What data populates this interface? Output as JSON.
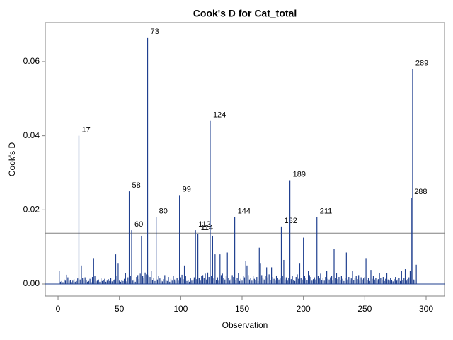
{
  "chart_data": {
    "type": "needle",
    "title": "Cook's D for Cat_total",
    "xlabel": "Observation",
    "ylabel": "Cook's D",
    "color": "#1f3f8f",
    "baseline_color": "#1f3f8f",
    "reference_line": 0.0137,
    "reference_color": "#808080",
    "xlim": [
      -10.4,
      315
    ],
    "xticks": [
      0,
      50,
      100,
      150,
      200,
      250,
      300
    ],
    "ylim": [
      -0.00325,
      0.0705
    ],
    "yticks": [
      {
        "value": 0,
        "label": "0.00"
      },
      {
        "value": 0.02,
        "label": "0.02"
      },
      {
        "value": 0.04,
        "label": "0.04"
      },
      {
        "value": 0.06,
        "label": "0.06"
      }
    ],
    "x": [
      1,
      2,
      3,
      4,
      5,
      6,
      7,
      8,
      9,
      10,
      11,
      12,
      13,
      14,
      15,
      16,
      17,
      18,
      19,
      20,
      21,
      22,
      23,
      24,
      25,
      26,
      27,
      28,
      29,
      30,
      31,
      32,
      33,
      34,
      35,
      36,
      37,
      38,
      39,
      40,
      41,
      42,
      43,
      44,
      45,
      46,
      47,
      48,
      49,
      50,
      51,
      52,
      53,
      54,
      55,
      56,
      57,
      58,
      59,
      60,
      61,
      62,
      63,
      64,
      65,
      66,
      67,
      68,
      69,
      70,
      71,
      72,
      73,
      74,
      75,
      76,
      77,
      78,
      79,
      80,
      81,
      82,
      83,
      84,
      85,
      86,
      87,
      88,
      89,
      90,
      91,
      92,
      93,
      94,
      95,
      96,
      97,
      98,
      99,
      100,
      101,
      102,
      103,
      104,
      105,
      106,
      107,
      108,
      109,
      110,
      111,
      112,
      113,
      114,
      115,
      116,
      117,
      118,
      119,
      120,
      121,
      122,
      123,
      124,
      125,
      126,
      127,
      128,
      129,
      130,
      131,
      132,
      133,
      134,
      135,
      136,
      137,
      138,
      139,
      140,
      141,
      142,
      143,
      144,
      145,
      146,
      147,
      148,
      149,
      150,
      151,
      152,
      153,
      154,
      155,
      156,
      157,
      158,
      159,
      160,
      161,
      162,
      163,
      164,
      165,
      166,
      167,
      168,
      169,
      170,
      171,
      172,
      173,
      174,
      175,
      176,
      177,
      178,
      179,
      180,
      181,
      182,
      183,
      184,
      185,
      186,
      187,
      188,
      189,
      190,
      191,
      192,
      193,
      194,
      195,
      196,
      197,
      198,
      199,
      200,
      201,
      202,
      203,
      204,
      205,
      206,
      207,
      208,
      209,
      210,
      211,
      212,
      213,
      214,
      215,
      216,
      217,
      218,
      219,
      220,
      221,
      222,
      223,
      224,
      225,
      226,
      227,
      228,
      229,
      230,
      231,
      232,
      233,
      234,
      235,
      236,
      237,
      238,
      239,
      240,
      241,
      242,
      243,
      244,
      245,
      246,
      247,
      248,
      249,
      250,
      251,
      252,
      253,
      254,
      255,
      256,
      257,
      258,
      259,
      260,
      261,
      262,
      263,
      264,
      265,
      266,
      267,
      268,
      269,
      270,
      271,
      272,
      273,
      274,
      275,
      276,
      277,
      278,
      279,
      280,
      281,
      282,
      283,
      284,
      285,
      286,
      287,
      288,
      289,
      290,
      291,
      292
    ],
    "values": [
      0.0035,
      0.0006,
      0.0008,
      0.0005,
      0.0012,
      0.0009,
      0.0025,
      0.0018,
      0.0007,
      0.0011,
      0.0005,
      0.0009,
      0.0013,
      0.0006,
      0.0008,
      0.0015,
      0.04,
      0.0012,
      0.005,
      0.0016,
      0.0009,
      0.0018,
      0.0011,
      0.0006,
      0.0008,
      0.0014,
      0.0005,
      0.0019,
      0.007,
      0.0021,
      0.0007,
      0.0009,
      0.0012,
      0.0006,
      0.0015,
      0.0008,
      0.0011,
      0.0014,
      0.0006,
      0.0009,
      0.0013,
      0.0008,
      0.0016,
      0.0007,
      0.001,
      0.0012,
      0.008,
      0.0022,
      0.0055,
      0.0009,
      0.0006,
      0.0011,
      0.0008,
      0.0014,
      0.003,
      0.0007,
      0.0018,
      0.025,
      0.0021,
      0.0145,
      0.0009,
      0.0012,
      0.0006,
      0.0019,
      0.0024,
      0.0013,
      0.0028,
      0.013,
      0.0022,
      0.0017,
      0.0031,
      0.0026,
      0.0665,
      0.0024,
      0.0019,
      0.0035,
      0.0011,
      0.0016,
      0.0008,
      0.018,
      0.0012,
      0.0021,
      0.0015,
      0.0009,
      0.0007,
      0.0013,
      0.0024,
      0.0011,
      0.0008,
      0.0019,
      0.0006,
      0.0014,
      0.0009,
      0.0022,
      0.0012,
      0.0007,
      0.0016,
      0.0009,
      0.024,
      0.0018,
      0.0025,
      0.0013,
      0.005,
      0.0021,
      0.0008,
      0.0011,
      0.0006,
      0.0015,
      0.0009,
      0.0012,
      0.0018,
      0.0145,
      0.0013,
      0.0135,
      0.0016,
      0.0009,
      0.0021,
      0.0024,
      0.0017,
      0.0028,
      0.0012,
      0.0031,
      0.0019,
      0.044,
      0.0022,
      0.013,
      0.0015,
      0.008,
      0.0011,
      0.0018,
      0.0009,
      0.008,
      0.0024,
      0.0028,
      0.0016,
      0.0012,
      0.0021,
      0.0085,
      0.0017,
      0.0009,
      0.0013,
      0.0024,
      0.0019,
      0.018,
      0.0011,
      0.0016,
      0.003,
      0.0008,
      0.0014,
      0.0009,
      0.0021,
      0.0018,
      0.0062,
      0.005,
      0.0024,
      0.0012,
      0.0016,
      0.0009,
      0.0022,
      0.0014,
      0.0011,
      0.0019,
      0.0008,
      0.0098,
      0.0055,
      0.0024,
      0.0016,
      0.0012,
      0.0021,
      0.0045,
      0.0018,
      0.0026,
      0.0011,
      0.0045,
      0.0019,
      0.0014,
      0.0009,
      0.0023,
      0.0017,
      0.0012,
      0.0015,
      0.0155,
      0.0021,
      0.0065,
      0.0012,
      0.0018,
      0.0009,
      0.0016,
      0.028,
      0.0013,
      0.0022,
      0.0011,
      0.0008,
      0.0019,
      0.0026,
      0.0014,
      0.0055,
      0.0017,
      0.0012,
      0.0125,
      0.0021,
      0.0016,
      0.0011,
      0.0035,
      0.0024,
      0.0019,
      0.0009,
      0.0013,
      0.0018,
      0.0012,
      0.018,
      0.0021,
      0.0015,
      0.0028,
      0.0011,
      0.0016,
      0.0009,
      0.0019,
      0.0035,
      0.0014,
      0.0012,
      0.0018,
      0.0021,
      0.0009,
      0.0095,
      0.0016,
      0.003,
      0.0013,
      0.0019,
      0.0011,
      0.0022,
      0.0014,
      0.0008,
      0.0017,
      0.0085,
      0.0012,
      0.0019,
      0.0009,
      0.0015,
      0.0035,
      0.0011,
      0.0016,
      0.0021,
      0.0013,
      0.0024,
      0.0009,
      0.0018,
      0.0012,
      0.0015,
      0.0019,
      0.007,
      0.0011,
      0.0016,
      0.0008,
      0.0038,
      0.0014,
      0.0021,
      0.0012,
      0.0017,
      0.0009,
      0.0013,
      0.003,
      0.0016,
      0.0011,
      0.0019,
      0.0008,
      0.0014,
      0.003,
      0.0012,
      0.0009,
      0.0016,
      0.0011,
      0.0007,
      0.0013,
      0.0019,
      0.0009,
      0.0012,
      0.0016,
      0.0008,
      0.0035,
      0.0011,
      0.0016,
      0.004,
      0.0009,
      0.0013,
      0.0018,
      0.0035,
      0.0233,
      0.058,
      0.0012,
      0.0009,
      0.0052
    ],
    "point_labels": [
      null,
      null,
      null,
      null,
      null,
      null,
      null,
      null,
      null,
      null,
      null,
      null,
      null,
      null,
      null,
      null,
      "17",
      null,
      null,
      null,
      null,
      null,
      null,
      null,
      null,
      null,
      null,
      null,
      null,
      null,
      null,
      null,
      null,
      null,
      null,
      null,
      null,
      null,
      null,
      null,
      null,
      null,
      null,
      null,
      null,
      null,
      null,
      null,
      null,
      null,
      null,
      null,
      null,
      null,
      null,
      null,
      null,
      "58",
      null,
      "60",
      null,
      null,
      null,
      null,
      null,
      null,
      null,
      null,
      null,
      null,
      null,
      null,
      "73",
      null,
      null,
      null,
      null,
      null,
      null,
      "80",
      null,
      null,
      null,
      null,
      null,
      null,
      null,
      null,
      null,
      null,
      null,
      null,
      null,
      null,
      null,
      null,
      null,
      null,
      "99",
      null,
      null,
      null,
      null,
      null,
      null,
      null,
      null,
      null,
      null,
      null,
      null,
      "112",
      null,
      "114",
      null,
      null,
      null,
      null,
      null,
      null,
      null,
      null,
      null,
      "124",
      null,
      null,
      null,
      null,
      null,
      null,
      null,
      null,
      null,
      null,
      null,
      null,
      null,
      null,
      null,
      null,
      null,
      null,
      null,
      "144",
      null,
      null,
      null,
      null,
      null,
      null,
      null,
      null,
      null,
      null,
      null,
      null,
      null,
      null,
      null,
      null,
      null,
      null,
      null,
      null,
      null,
      null,
      null,
      null,
      null,
      null,
      null,
      null,
      null,
      null,
      null,
      null,
      null,
      null,
      null,
      null,
      null,
      "182",
      null,
      null,
      null,
      null,
      null,
      null,
      "189",
      null,
      null,
      null,
      null,
      null,
      null,
      null,
      null,
      null,
      null,
      null,
      null,
      null,
      null,
      null,
      null,
      null,
      null,
      null,
      null,
      null,
      "211",
      null,
      null,
      null,
      null,
      null,
      null,
      null,
      null,
      null,
      null,
      null,
      null,
      null,
      null,
      null,
      null,
      null,
      null,
      null,
      null,
      null,
      null,
      null,
      null,
      null,
      null,
      null,
      null,
      null,
      null,
      null,
      null,
      null,
      null,
      null,
      null,
      null,
      null,
      null,
      null,
      null,
      null,
      null,
      null,
      null,
      null,
      null,
      null,
      null,
      null,
      null,
      null,
      null,
      null,
      null,
      null,
      null,
      null,
      null,
      null,
      null,
      null,
      null,
      null,
      null,
      null,
      null,
      null,
      null,
      null,
      null,
      null,
      null,
      null,
      null,
      null,
      "288",
      "289",
      null,
      null,
      null
    ]
  }
}
